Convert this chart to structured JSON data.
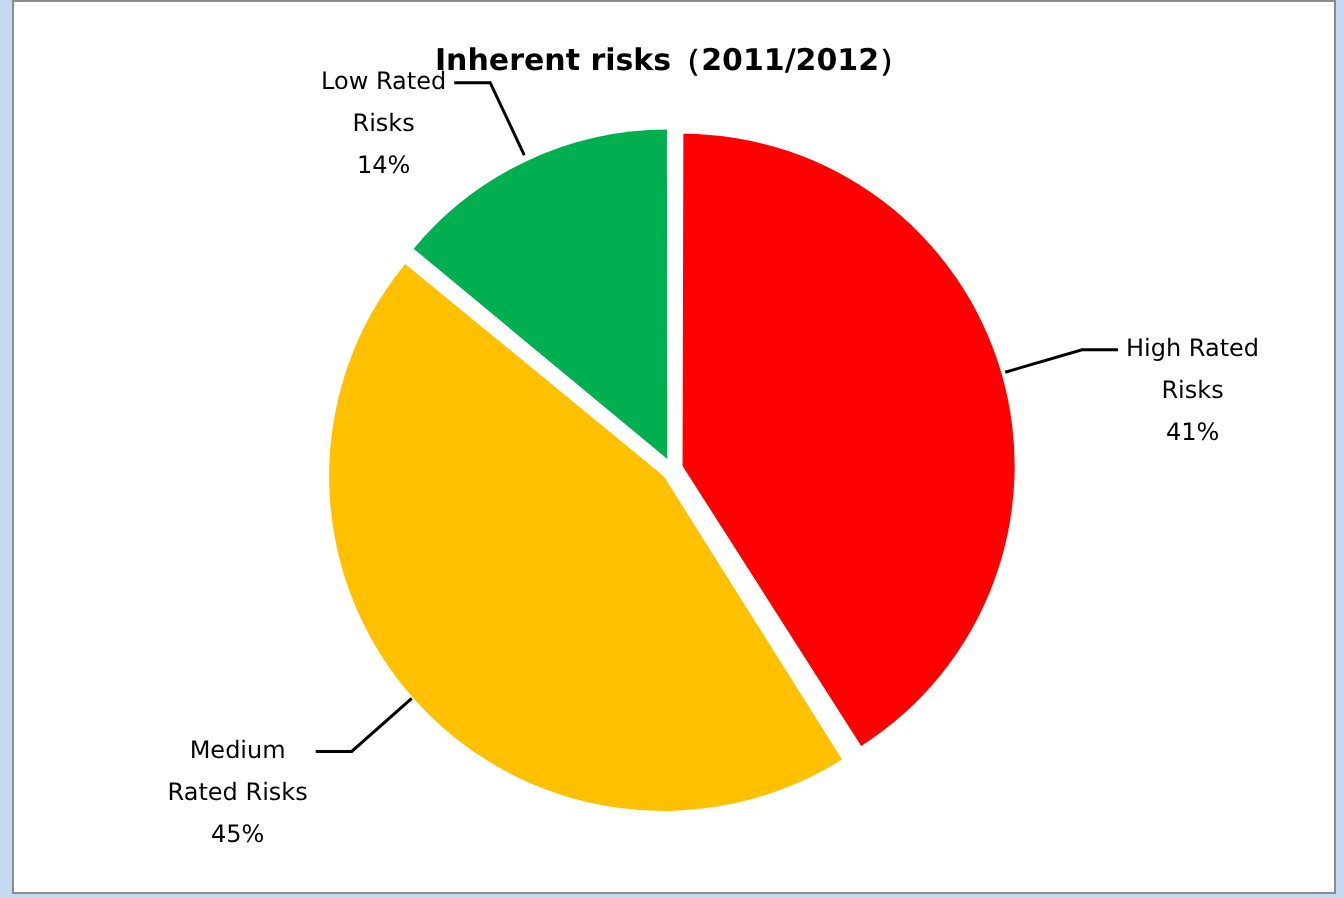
{
  "chart_data": {
    "type": "pie",
    "title": "Inherent risks（2011/2012）",
    "categories": [
      "High Rated Risks",
      "Medium Rated Risks",
      "Low Rated Risks"
    ],
    "values": [
      41,
      45,
      14
    ],
    "colors": [
      "#ff0000",
      "#ffc000",
      "#00b050"
    ],
    "value_labels": [
      "41%",
      "45%",
      "14%"
    ],
    "legend": false
  }
}
